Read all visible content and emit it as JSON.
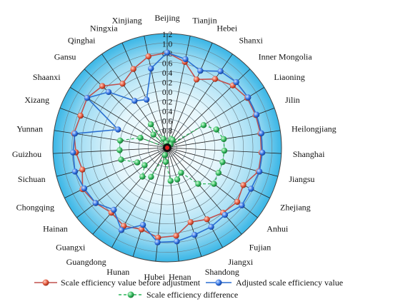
{
  "chart_data": {
    "type": "radar",
    "title": "",
    "rlim": [
      0,
      1.2
    ],
    "ticks": [
      "0",
      "0.2",
      "0.4",
      "0.6",
      "0.8",
      "1",
      "1.2"
    ],
    "tick_labels_shown": [
      "1.2",
      "1.0",
      "0.8",
      "0.6",
      "0.4",
      "0.2",
      "0.0",
      "0.2",
      "0.4",
      "0.6",
      "0.8",
      "1.0"
    ],
    "categories": [
      "Beijing",
      "Tianjin",
      "Hebei",
      "Shanxi",
      "Inner Mongolia",
      "Liaoning",
      "Jilin",
      "Heilongjiang",
      "Shanghai",
      "Jiangsu",
      "Zhejiang",
      "Anhui",
      "Fujian",
      "Jiangxi",
      "Shandong",
      "Henan",
      "Hubei",
      "Hunan",
      "Guangdong",
      "Guangxi",
      "Hainan",
      "Chongqing",
      "Sichuan",
      "Guizhou",
      "Yunnan",
      "Xizang",
      "Shaanxi",
      "Gansu",
      "Qinghai",
      "Ningxia",
      "Xinjiang"
    ],
    "series": [
      {
        "name": "Scale efficiency value before adjustment",
        "color": "#c0504d",
        "values": [
          1.0,
          0.92,
          0.78,
          0.88,
          0.95,
          0.99,
          0.99,
          0.99,
          0.99,
          0.99,
          0.89,
          0.93,
          0.9,
          0.86,
          0.82,
          0.93,
          0.95,
          0.9,
          0.94,
          0.9,
          0.95,
          0.99,
          0.92,
          0.96,
          0.99,
          0.97,
          0.99,
          0.94,
          0.82,
          0.9,
          0.98
        ]
      },
      {
        "name": "Adjusted scale efficiency value",
        "color": "#2a6fd0",
        "values": [
          1.0,
          0.95,
          0.88,
          0.98,
          1.0,
          1.0,
          1.0,
          1.0,
          1.0,
          1.0,
          0.98,
          0.99,
          0.93,
          0.95,
          0.96,
          0.99,
          1.0,
          0.85,
          0.99,
          0.86,
          0.95,
          0.97,
          1.0,
          0.99,
          0.98,
          0.55,
          0.99,
          0.85,
          0.6,
          0.55,
          0.85
        ]
      },
      {
        "name": "Scale efficiency difference",
        "color": "#2db35a",
        "values": [
          0.0,
          0.03,
          0.1,
          0.1,
          0.05,
          0.45,
          0.55,
          0.6,
          0.6,
          0.6,
          0.6,
          0.62,
          0.5,
          0.3,
          0.35,
          0.35,
          0.15,
          0.08,
          0.35,
          0.4,
          0.3,
          0.35,
          0.5,
          0.5,
          0.5,
          0.3,
          0.0,
          0.2,
          0.3,
          0.1,
          0.05
        ]
      }
    ],
    "grid": true,
    "legend": "bottom"
  }
}
